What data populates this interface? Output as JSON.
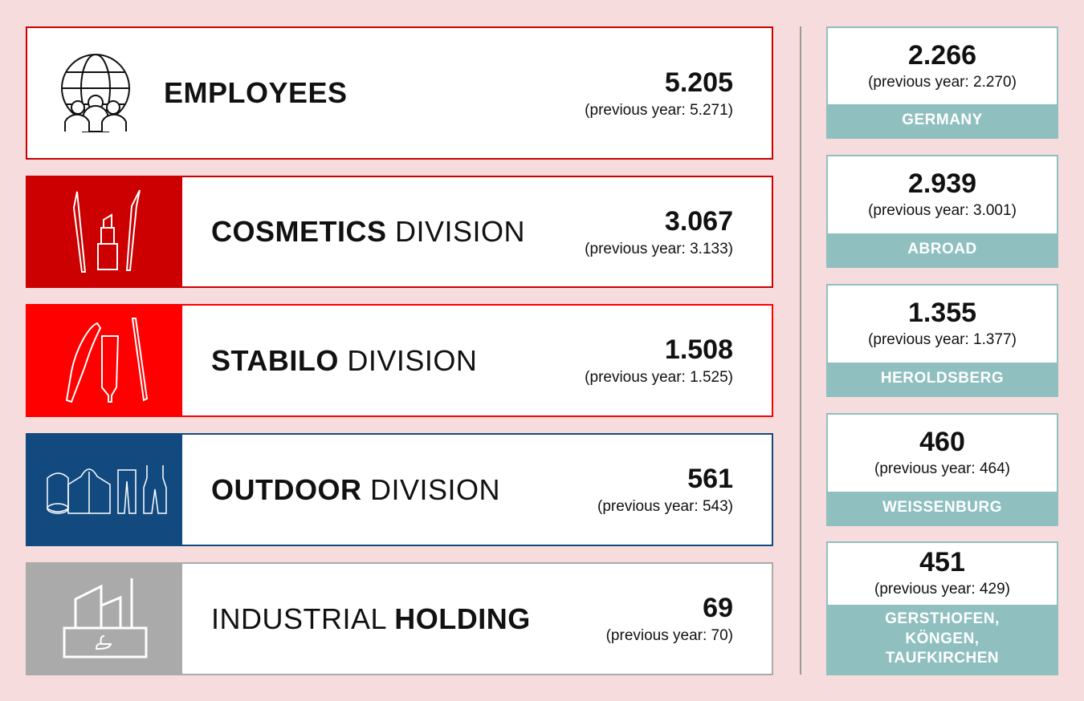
{
  "colors": {
    "background": "#f7dcdd",
    "cosmetics": "#cc0000",
    "stabilo": "#ff0000",
    "outdoor": "#124a80",
    "industrial": "#aaaaaa",
    "location": "#8fbfbf"
  },
  "employees": {
    "title": "EMPLOYEES",
    "value": "5.205",
    "previous": "(previous year: 5.271)",
    "icon": "globe-people-icon"
  },
  "divisions": [
    {
      "bold": "COSMETICS",
      "normal": " DIVISION",
      "value": "3.067",
      "previous": "(previous year: 3.133)",
      "icon": "cosmetics-icon"
    },
    {
      "bold": "STABILO",
      "normal": " DIVISION",
      "value": "1.508",
      "previous": "(previous year: 1.525)",
      "icon": "pens-icon"
    },
    {
      "bold": "OUTDOOR",
      "normal": " DIVISION",
      "value": "561",
      "previous": "(previous year: 543)",
      "icon": "outdoor-clothing-icon"
    },
    {
      "normal": "INDUSTRIAL ",
      "bold": "HOLDING",
      "value": "69",
      "previous": "(previous year: 70)",
      "icon": "factory-icon"
    }
  ],
  "locations": [
    {
      "value": "2.266",
      "previous": "(previous year: 2.270)",
      "label": "GERMANY"
    },
    {
      "value": "2.939",
      "previous": "(previous year: 3.001)",
      "label": "ABROAD"
    },
    {
      "value": "1.355",
      "previous": "(previous year: 1.377)",
      "label": "HEROLDSBERG"
    },
    {
      "value": "460",
      "previous": "(previous year: 464)",
      "label": "WEISSENBURG"
    },
    {
      "value": "451",
      "previous": "(previous year: 429)",
      "label": "GERSTHOFEN, KÖNGEN, TAUFKIRCHEN"
    }
  ]
}
